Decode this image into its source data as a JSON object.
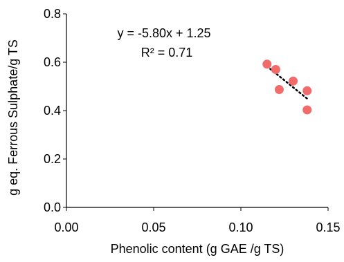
{
  "chart_data": {
    "type": "scatter",
    "title": "",
    "xlabel": "Phenolic content (g  GAE /g TS)",
    "ylabel": "g eq. Ferrous Sulphate/g TS",
    "xlim": [
      0,
      0.15
    ],
    "ylim": [
      0,
      0.8
    ],
    "x_ticks": [
      "0.00",
      "0.05",
      "0.10",
      "0.15"
    ],
    "y_ticks": [
      "0.0",
      "0.2",
      "0.4",
      "0.6",
      "0.8"
    ],
    "grid": false,
    "points": [
      {
        "x": 0.115,
        "y": 0.592
      },
      {
        "x": 0.12,
        "y": 0.57
      },
      {
        "x": 0.122,
        "y": 0.487
      },
      {
        "x": 0.13,
        "y": 0.522
      },
      {
        "x": 0.138,
        "y": 0.482
      },
      {
        "x": 0.138,
        "y": 0.403
      }
    ],
    "point_color": "#f26b6b",
    "trendline": {
      "slope": -5.8,
      "intercept": 1.25,
      "x_range": [
        0.115,
        0.138
      ],
      "equation_label": "y = -5.80x + 1.25",
      "r2_label": "R² = 0.71",
      "style": "dotted",
      "color": "#000000"
    }
  }
}
